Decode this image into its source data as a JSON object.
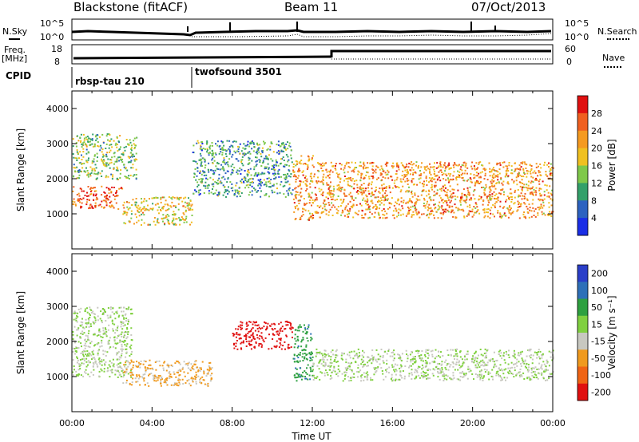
{
  "header": {
    "station": "Blackstone (fitACF)",
    "beam": "Beam 11",
    "date": "07/Oct/2013"
  },
  "side_labels": {
    "nsky": "N.Sky",
    "nsearch": "N.Search",
    "freq": "Freq.",
    "freq_unit": "[MHz]",
    "nave": "Nave",
    "cpid": "CPID"
  },
  "noise_axis": {
    "left_ticks": [
      "10^5",
      "10^0"
    ],
    "right_ticks": [
      "10^5",
      "10^0"
    ]
  },
  "freq_axis": {
    "left_ticks": [
      "18",
      "8"
    ],
    "right_ticks": [
      "60",
      "0"
    ]
  },
  "cpid_segments": [
    {
      "label": "rbsp-tau 210",
      "start_hour": 0
    },
    {
      "label": "twofsound 3501",
      "start_hour": 6
    }
  ],
  "chart_data": [
    {
      "type": "heatmap",
      "title": "Power",
      "xlabel": "",
      "ylabel": "Slant Range [km]",
      "x_range_hours": [
        0,
        24
      ],
      "ylim": [
        0,
        4500
      ],
      "ytick_labels": [
        "1000",
        "2000",
        "3000",
        "4000"
      ],
      "colorbar": {
        "label": "Power [dB]",
        "ticks": [
          "4",
          "8",
          "12",
          "16",
          "20",
          "24",
          "28"
        ],
        "range": [
          0,
          32
        ],
        "colors": [
          "#1a2ee6",
          "#2c62c0",
          "#33a06a",
          "#7fc84a",
          "#f0c020",
          "#f59a20",
          "#f06020",
          "#e01010"
        ]
      },
      "bands": [
        {
          "hours": [
            0,
            2.5
          ],
          "range_km": [
            1150,
            1800
          ],
          "level": 26
        },
        {
          "hours": [
            2.5,
            6
          ],
          "range_km": [
            700,
            1500
          ],
          "level": 18
        },
        {
          "hours": [
            0,
            3.2
          ],
          "range_km": [
            2000,
            3300
          ],
          "level": 14
        },
        {
          "hours": [
            6,
            11
          ],
          "range_km": [
            1500,
            3100
          ],
          "level": 10
        },
        {
          "hours": [
            11,
            12
          ],
          "range_km": [
            800,
            2700
          ],
          "level": 22
        },
        {
          "hours": [
            12,
            24
          ],
          "range_km": [
            900,
            2500
          ],
          "level": 22
        }
      ]
    },
    {
      "type": "heatmap",
      "title": "Velocity",
      "xlabel": "Time UT",
      "ylabel": "Slant Range [km]",
      "x_range_hours": [
        0,
        24
      ],
      "xtick_labels": [
        "00:00",
        "04:00",
        "08:00",
        "12:00",
        "16:00",
        "20:00",
        "00:00"
      ],
      "ylim": [
        0,
        4500
      ],
      "ytick_labels": [
        "1000",
        "2000",
        "3000",
        "4000"
      ],
      "colorbar": {
        "label": "Velocity [m s⁻¹]",
        "ticks": [
          "200",
          "100",
          "50",
          "15",
          "-15",
          "-50",
          "-100",
          "-200"
        ],
        "colors": [
          "#2a3ec8",
          "#2e70b8",
          "#2ea040",
          "#80d040",
          "#c8c8c0",
          "#f09a1e",
          "#f06414",
          "#e01010"
        ]
      },
      "bands": [
        {
          "hours": [
            0,
            3
          ],
          "range_km": [
            1000,
            3000
          ],
          "velocity": 0
        },
        {
          "hours": [
            2.5,
            7
          ],
          "range_km": [
            750,
            1500
          ],
          "velocity": -60
        },
        {
          "hours": [
            8,
            11
          ],
          "range_km": [
            1800,
            2600
          ],
          "velocity": -180
        },
        {
          "hours": [
            11,
            12
          ],
          "range_km": [
            900,
            2500
          ],
          "velocity": 80
        },
        {
          "hours": [
            12,
            24
          ],
          "range_km": [
            900,
            1800
          ],
          "velocity": 0
        }
      ]
    }
  ]
}
